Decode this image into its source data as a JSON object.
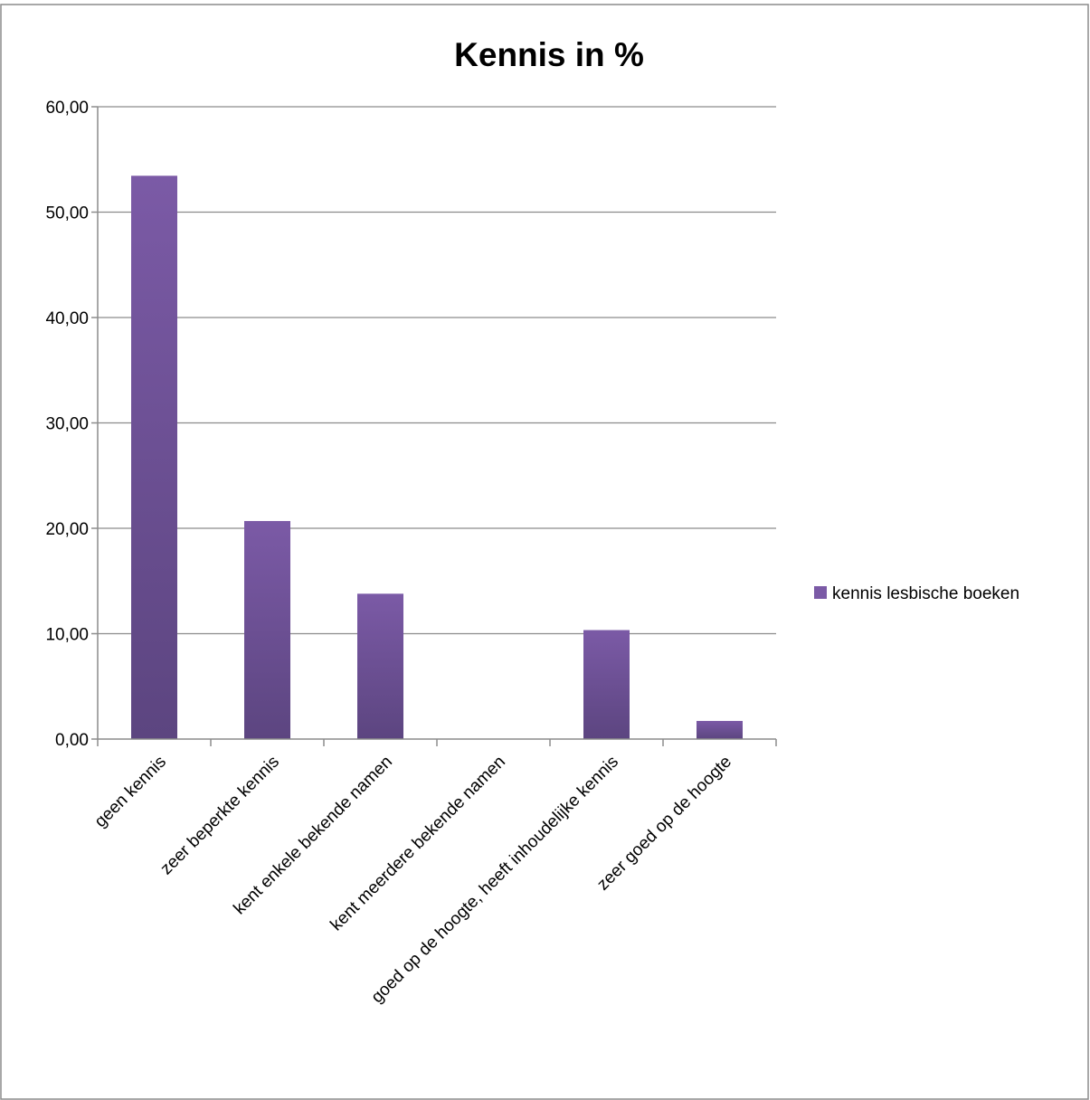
{
  "chart_data": {
    "type": "bar",
    "title": "Kennis in %",
    "categories": [
      "geen kennis",
      "zeer beperkte kennis",
      "kent enkele bekende namen",
      "kent meerdere bekende namen",
      "goed op de hoogte, heeft inhoudelijke kennis",
      "zeer goed op de hoogte"
    ],
    "series": [
      {
        "name": "kennis lesbische boeken",
        "values": [
          53.45,
          20.69,
          13.79,
          0.0,
          10.34,
          1.72
        ],
        "color": "#7b5aa6",
        "color_dark": "#5c4580"
      }
    ],
    "yticks": [
      "0,00",
      "10,00",
      "20,00",
      "30,00",
      "40,00",
      "50,00",
      "60,00"
    ],
    "ylim": [
      0,
      60
    ],
    "ystep": 10,
    "xlabel": "",
    "ylabel": "",
    "grid": true,
    "legend_position": "right"
  }
}
